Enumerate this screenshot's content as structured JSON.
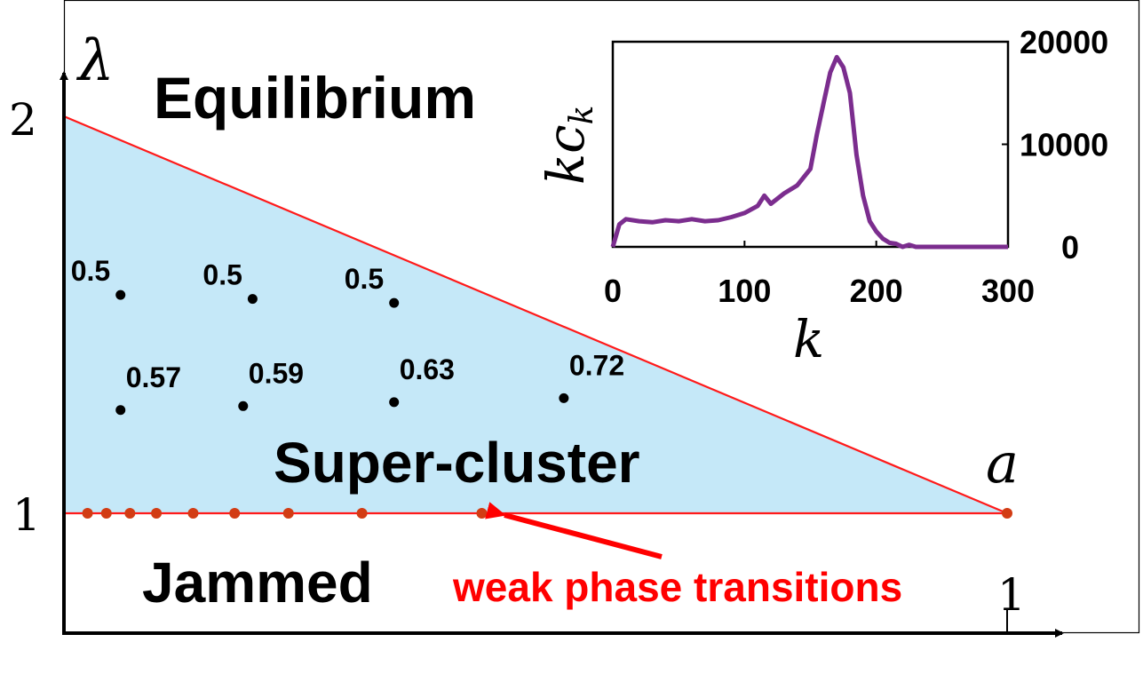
{
  "axes": {
    "y_symbol": "λ",
    "x_symbol": "a",
    "y_ticks": [
      "2",
      "1"
    ],
    "x_ticks": [
      "1"
    ]
  },
  "regions": {
    "upper": "Equilibrium",
    "middle": "Super-cluster",
    "lower": "Jammed"
  },
  "annotation": {
    "text": "weak phase transitions"
  },
  "colors": {
    "region_fill": "#c5e8f8",
    "boundary": "#ff1a1a",
    "transition_dot": "#d23c14",
    "annotation": "#ff0000",
    "inset_curve": "#7b2d8e"
  },
  "phase_points": [
    {
      "label": "0.5",
      "a": 0.06,
      "lambda": 1.55
    },
    {
      "label": "0.5",
      "a": 0.2,
      "lambda": 1.54
    },
    {
      "label": "0.5",
      "a": 0.35,
      "lambda": 1.53
    },
    {
      "label": "0.57",
      "a": 0.06,
      "lambda": 1.26
    },
    {
      "label": "0.59",
      "a": 0.19,
      "lambda": 1.27
    },
    {
      "label": "0.63",
      "a": 0.35,
      "lambda": 1.28
    },
    {
      "label": "0.72",
      "a": 0.53,
      "lambda": 1.29
    }
  ],
  "transition_points_a": [
    0.025,
    0.045,
    0.07,
    0.098,
    0.137,
    0.181,
    0.238,
    0.316,
    0.443,
    1.0
  ],
  "inset": {
    "xlabel": "k",
    "ylabel": "kc",
    "ylabel_sub": "k",
    "xticks": [
      "0",
      "100",
      "200",
      "300"
    ],
    "yticks": [
      "20000",
      "10000",
      "0"
    ],
    "chart_data": {
      "type": "line",
      "xlabel": "k",
      "ylabel": "k c_k",
      "xlim": [
        0,
        300
      ],
      "ylim": [
        0,
        20000
      ],
      "x": [
        0,
        5,
        10,
        20,
        30,
        40,
        50,
        60,
        70,
        80,
        90,
        100,
        110,
        115,
        120,
        130,
        140,
        150,
        155,
        160,
        165,
        170,
        175,
        180,
        185,
        190,
        195,
        200,
        205,
        210,
        215,
        220,
        225,
        230,
        250,
        300
      ],
      "y": [
        0,
        2200,
        2700,
        2500,
        2400,
        2600,
        2500,
        2700,
        2500,
        2600,
        2900,
        3300,
        4000,
        5000,
        4200,
        5200,
        6000,
        7600,
        11000,
        14000,
        17000,
        18500,
        17500,
        15000,
        9000,
        5000,
        2500,
        1500,
        800,
        400,
        300,
        0,
        200,
        0,
        0,
        0
      ]
    }
  }
}
